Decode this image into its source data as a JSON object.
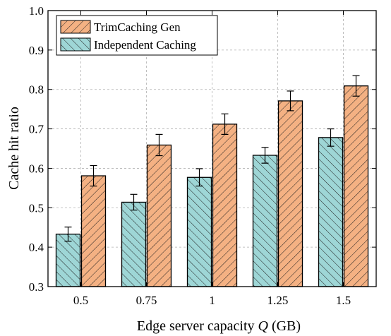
{
  "chart_data": {
    "type": "bar",
    "xlabel_prefix": "Edge server capacity ",
    "xlabel_var": "Q",
    "xlabel_suffix": " (GB)",
    "ylabel": "Cache hit ratio",
    "ylim": [
      0.3,
      1.0
    ],
    "yticks": [
      "0.3",
      "0.4",
      "0.5",
      "0.6",
      "0.7",
      "0.8",
      "0.9",
      "1.0"
    ],
    "categories": [
      "0.5",
      "0.75",
      "1",
      "1.25",
      "1.5"
    ],
    "grid": true,
    "legend_position": "top-left",
    "series": [
      {
        "name": "Independent Caching",
        "color": "#9ed6d6",
        "hatch": "backslash",
        "values": [
          0.433,
          0.514,
          0.577,
          0.633,
          0.678
        ],
        "errors": [
          0.018,
          0.02,
          0.022,
          0.02,
          0.022
        ]
      },
      {
        "name": "TrimCaching Gen",
        "color": "#f4b183",
        "hatch": "slash",
        "values": [
          0.581,
          0.659,
          0.712,
          0.771,
          0.809
        ],
        "errors": [
          0.026,
          0.027,
          0.026,
          0.025,
          0.026
        ]
      }
    ]
  }
}
